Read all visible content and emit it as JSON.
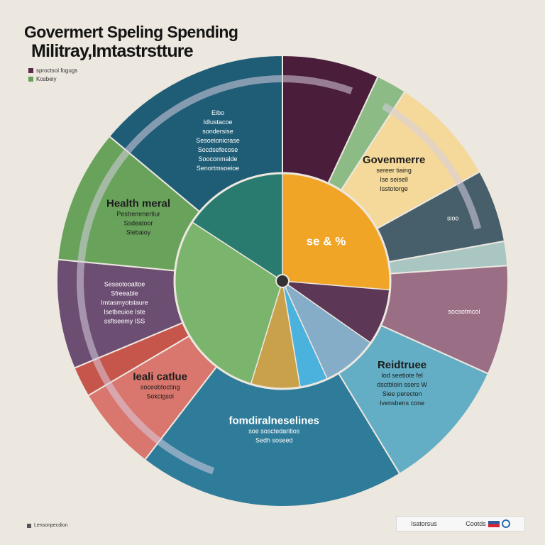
{
  "header": {
    "title": "Govermert Speling Spending",
    "subtitle": "Militray,Imtastrstture"
  },
  "legend": [
    {
      "label": "sproctsoi fogugs",
      "color": "#5b2a49"
    },
    {
      "label": "Kosbeiy",
      "color": "#6aa05a"
    }
  ],
  "footer": {
    "credit": "Lensonpecdion",
    "items": [
      "Isatorsus",
      "Cootds"
    ]
  },
  "chart_data": {
    "type": "pie",
    "title": "Govermert Speling Spending",
    "outer_ring": [
      {
        "label": "",
        "value": 8,
        "color": "#4a1d3a",
        "text": []
      },
      {
        "label": "",
        "value": 2.5,
        "color": "#8dbb86",
        "text": []
      },
      {
        "label": "Govenmerre",
        "value": 9,
        "color": "#f4d99a",
        "text": [
          "Govenmerre",
          "sereer tiaing",
          "Ise seisell",
          "Isstotorge"
        ]
      },
      {
        "label": "",
        "value": 6,
        "color": "#465f6a",
        "text": [
          "sioo"
        ]
      },
      {
        "label": "",
        "value": 2,
        "color": "#a9c6c2",
        "text": []
      },
      {
        "label": "",
        "value": 9,
        "color": "#9a6f86",
        "text": [
          "socsotmcoi"
        ]
      },
      {
        "label": "Reidtruee",
        "value": 11,
        "color": "#63aec5",
        "text": [
          "Reidtruee",
          "Iod seetiote fel",
          "dsctbloin ssers W",
          "Siee perecton",
          "Ivensbens cone"
        ]
      },
      {
        "label": "fomdiralneselines",
        "value": 22,
        "color": "#2e7b9a",
        "text": [
          "fomdiralneselines",
          "soe sosctedaritios",
          "Sedh soseed"
        ]
      },
      {
        "label": "Ieali catlue",
        "value": 7,
        "color": "#d9766d",
        "text": [
          "Ieali catlue",
          "soceobtocting",
          "Sokcigsol"
        ]
      },
      {
        "label": "",
        "value": 2.5,
        "color": "#c6564b",
        "text": []
      },
      {
        "label": "Sfreeable",
        "value": 9,
        "color": "#6c4e72",
        "text": [
          "Seseotooaltoe",
          "Sfreeable",
          "Imtasmyotstaure",
          "Isetbeuioe Iste",
          "ssftseemy ISS"
        ]
      },
      {
        "label": "Health meral",
        "value": 11,
        "color": "#69a35b",
        "text": [
          "Health meral",
          "Pestremmertiur",
          "Ssdeatoor",
          "Slebaioy"
        ]
      },
      {
        "label": "",
        "value": 16,
        "color": "#1f5d76",
        "text": [
          "Eibo",
          "Idlustacoe",
          "sondersise",
          "Sesoeionicrase",
          "Socdsefecose",
          "Sooconmalde",
          "Senortmsoeioe"
        ]
      }
    ],
    "inner_pie": [
      {
        "label": "",
        "value": 25,
        "color": "#f0a527",
        "text": "se & %"
      },
      {
        "label": "",
        "value": 8,
        "color": "#5c3756"
      },
      {
        "label": "",
        "value": 8,
        "color": "#85adc8"
      },
      {
        "label": "",
        "value": 4,
        "color": "#4ab2dd"
      },
      {
        "label": "",
        "value": 7,
        "color": "#c9a14a"
      },
      {
        "label": "",
        "value": 28,
        "color": "#7bb46d"
      },
      {
        "label": "",
        "value": 15,
        "color": "#2a7b6f"
      }
    ],
    "ring_accent": "#d7cee0",
    "legend_position": "top-left"
  }
}
